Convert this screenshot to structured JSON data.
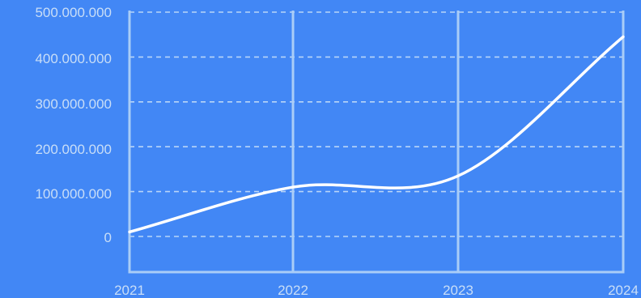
{
  "chart_data": {
    "type": "line",
    "x": [
      "2021",
      "2022",
      "2023",
      "2024"
    ],
    "y_ticks": [
      "500.000.000",
      "400.000.000",
      "300.000.000",
      "200.000.000",
      "100.000.000",
      "0"
    ],
    "ylim": [
      0,
      500000000
    ],
    "grid": true,
    "series": [
      {
        "values": [
          10000000,
          110000000,
          135000000,
          445000000
        ]
      }
    ]
  },
  "colors": {
    "background": "#4287f5",
    "line": "#ffffff",
    "axis": "#a9cdf7",
    "grid": "#b8d5f8",
    "tick_text": "#c9def7"
  }
}
